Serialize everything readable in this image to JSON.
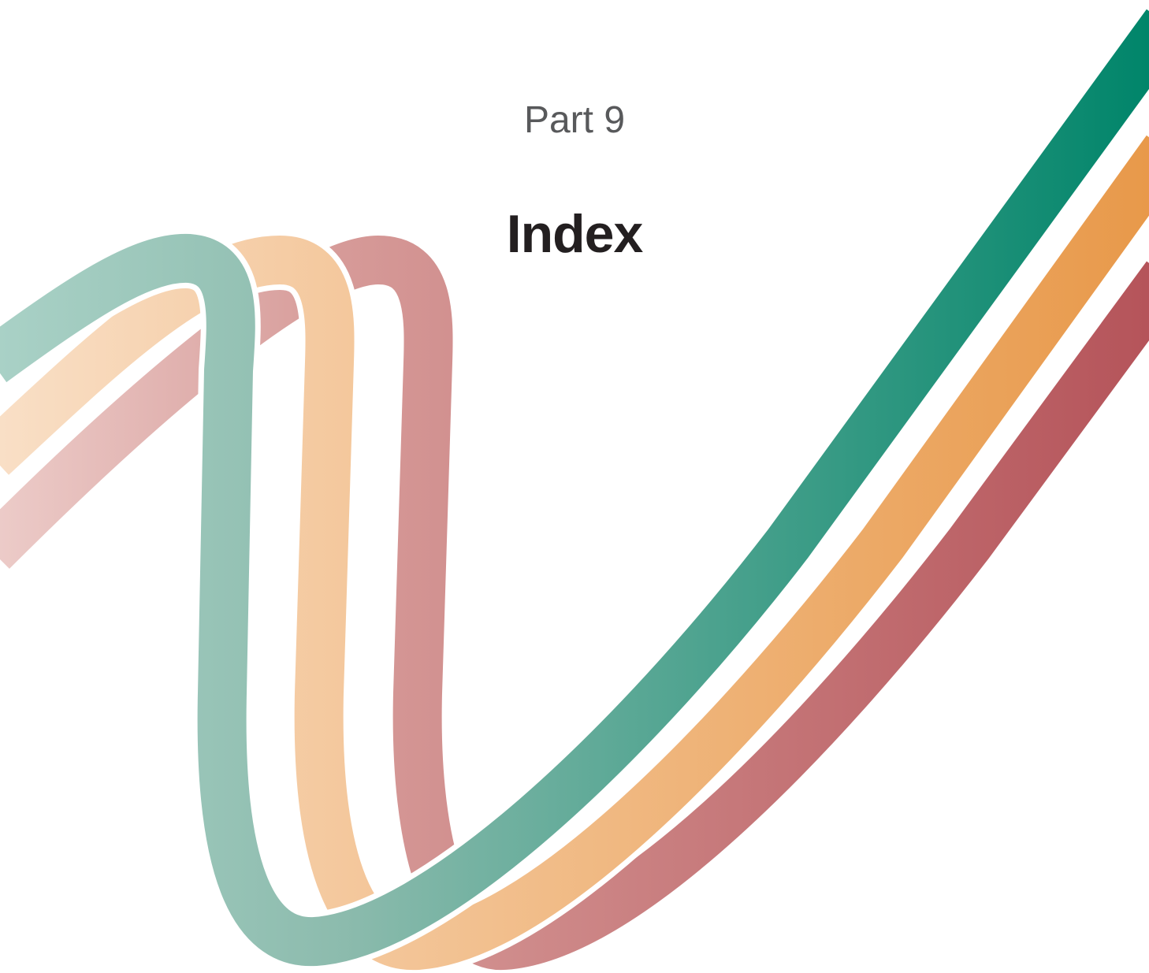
{
  "header": {
    "part": "Part 9",
    "title": "Index"
  }
}
